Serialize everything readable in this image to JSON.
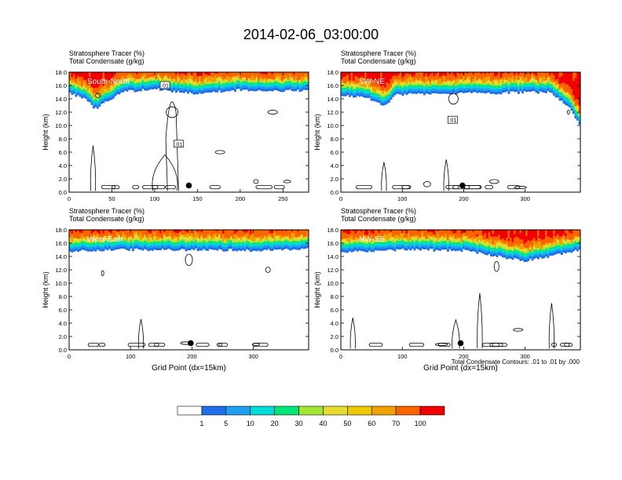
{
  "title": "2014-02-06_03:00:00",
  "colors": {
    "levels": [
      "#ffffff",
      "#1e6eeb",
      "#1ea0f0",
      "#00dcdc",
      "#00e678",
      "#00d700",
      "#a0e632",
      "#e6dc32",
      "#f0c800",
      "#f0a000",
      "#fa6400",
      "#f00000"
    ],
    "contour": "#000000",
    "marker": "#000000"
  },
  "colorbar": {
    "labels": [
      "1",
      "5",
      "10",
      "20",
      "30",
      "40",
      "50",
      "60",
      "70",
      "100"
    ]
  },
  "footnote": "Total Condensate Contours: .01 to .01 by .000",
  "chart_data": [
    {
      "type": "heatmap",
      "panel_label": "South-North",
      "subtitle_line1": "Stratosphere Tracer   (%)",
      "subtitle_line2": "Total Condensate   (g/kg)",
      "ylabel": "Height (km)",
      "xlabel": "",
      "xlim": [
        0,
        280
      ],
      "ylim": [
        0,
        18
      ],
      "xticks": [
        "0",
        "50",
        "100",
        "150",
        "200",
        "250"
      ],
      "xtick_values": [
        0,
        50,
        100,
        150,
        200,
        250
      ],
      "yticks": [
        "0.0",
        "2.0",
        "4.0",
        "6.0",
        "8.0",
        "10.0",
        "12.0",
        "14.0",
        "16.0",
        "18.0"
      ],
      "marker": {
        "x": 140,
        "y": 1.0
      },
      "contour_labels": [
        {
          "text": ".01",
          "x": 112,
          "y": 16
        },
        {
          "text": ".01",
          "x": 128,
          "y": 7.2
        }
      ],
      "tracer_base_km": [
        [
          0,
          14.8
        ],
        [
          20,
          14.0
        ],
        [
          30,
          12.5
        ],
        [
          40,
          13.2
        ],
        [
          60,
          15.0
        ],
        [
          100,
          15.5
        ],
        [
          140,
          14.8
        ],
        [
          200,
          15.3
        ],
        [
          280,
          15.2
        ]
      ]
    },
    {
      "type": "heatmap",
      "panel_label": "SW-NE",
      "subtitle_line1": "Stratosphere Tracer   (%)",
      "subtitle_line2": "Total Condensate   (g/kg)",
      "ylabel": "Height (km)",
      "xlabel": "",
      "xlim": [
        0,
        390
      ],
      "ylim": [
        0,
        18
      ],
      "xticks": [
        "0",
        "100",
        "200",
        "300"
      ],
      "xtick_values": [
        0,
        100,
        200,
        300
      ],
      "yticks": [
        "0.0",
        "2.0",
        "4.0",
        "6.0",
        "8.0",
        "10.0",
        "12.0",
        "14.0",
        "16.0",
        "18.0"
      ],
      "marker": {
        "x": 198,
        "y": 1.0
      },
      "contour_labels": [
        {
          "text": ".01",
          "x": 182,
          "y": 10.8
        }
      ],
      "tracer_base_km": [
        [
          0,
          14.6
        ],
        [
          40,
          14.2
        ],
        [
          70,
          13.0
        ],
        [
          90,
          14.6
        ],
        [
          200,
          14.8
        ],
        [
          340,
          15.0
        ],
        [
          370,
          13.0
        ],
        [
          390,
          10.0
        ]
      ]
    },
    {
      "type": "heatmap",
      "panel_label": "West-East",
      "subtitle_line1": "Stratosphere Tracer   (%)",
      "subtitle_line2": "Total Condensate   (g/kg)",
      "ylabel": "Height (km)",
      "xlabel": "Grid Point (dx=15km)",
      "xlim": [
        0,
        390
      ],
      "ylim": [
        0,
        18
      ],
      "xticks": [
        "0",
        "100",
        "200",
        "300"
      ],
      "xtick_values": [
        0,
        100,
        200,
        300
      ],
      "yticks": [
        "0.0",
        "2.0",
        "4.0",
        "6.0",
        "8.0",
        "10.0",
        "12.0",
        "14.0",
        "16.0",
        "18.0"
      ],
      "marker": {
        "x": 198,
        "y": 1.0
      },
      "contour_labels": [],
      "tracer_base_km": [
        [
          0,
          14.8
        ],
        [
          100,
          15.0
        ],
        [
          200,
          15.0
        ],
        [
          300,
          14.9
        ],
        [
          390,
          15.1
        ]
      ]
    },
    {
      "type": "heatmap",
      "panel_label": "NW-SE",
      "subtitle_line1": "Stratosphere Tracer   (%)",
      "subtitle_line2": "Total Condensate   (g/kg)",
      "ylabel": "Height (km)",
      "xlabel": "Grid Point (dx=15km)",
      "xlim": [
        0,
        390
      ],
      "ylim": [
        0,
        18
      ],
      "xticks": [
        "0",
        "100",
        "200",
        "300"
      ],
      "xtick_values": [
        0,
        100,
        200,
        300
      ],
      "yticks": [
        "0.0",
        "2.0",
        "4.0",
        "6.0",
        "8.0",
        "10.0",
        "12.0",
        "14.0",
        "16.0",
        "18.0"
      ],
      "marker": {
        "x": 195,
        "y": 1.0
      },
      "contour_labels": [],
      "tracer_base_km": [
        [
          0,
          14.6
        ],
        [
          100,
          15.0
        ],
        [
          200,
          14.9
        ],
        [
          300,
          13.3
        ],
        [
          390,
          15.0
        ]
      ]
    }
  ]
}
